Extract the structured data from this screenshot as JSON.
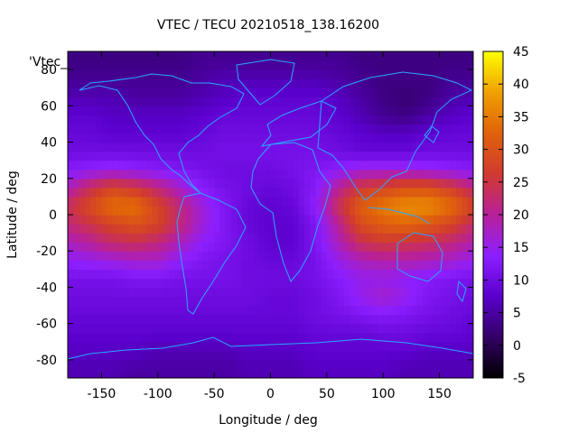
{
  "chart_data": {
    "type": "heatmap",
    "title": "VTEC / TECU 20210518_138.16200",
    "xlabel": "Longitude / deg",
    "ylabel": "Latitude / deg",
    "key_label": "'Vtec_",
    "xlim": [
      -180,
      180
    ],
    "ylim": [
      -90,
      90
    ],
    "x_ticks": [
      -150,
      -100,
      -50,
      0,
      50,
      100,
      150
    ],
    "y_ticks": [
      -80,
      -60,
      -40,
      -20,
      0,
      20,
      40,
      60,
      80
    ],
    "colorbar": {
      "min": -5,
      "max": 45,
      "ticks": [
        -5,
        0,
        5,
        10,
        15,
        20,
        25,
        30,
        35,
        40,
        45
      ]
    },
    "grid": false,
    "colors": {
      "coastline": "#2aa8ff"
    },
    "grid_latitudes": [
      -85,
      -75,
      -65,
      -55,
      -45,
      -35,
      -25,
      -15,
      -5,
      5,
      15,
      25,
      35,
      45,
      55,
      65,
      75,
      85
    ],
    "grid_longitudes": [
      -180,
      -160,
      -140,
      -120,
      -100,
      -80,
      -60,
      -40,
      -20,
      0,
      20,
      40,
      60,
      80,
      100,
      120,
      140,
      160,
      180
    ],
    "vtec_values": [
      [
        6,
        6,
        6,
        5,
        5,
        5,
        5,
        5,
        6,
        6,
        6,
        7,
        7,
        7,
        7,
        6,
        6,
        6,
        6
      ],
      [
        7,
        7,
        7,
        7,
        6,
        6,
        6,
        6,
        7,
        7,
        7,
        8,
        8,
        8,
        8,
        8,
        7,
        7,
        7
      ],
      [
        8,
        8,
        8,
        8,
        8,
        8,
        8,
        8,
        8,
        8,
        8,
        9,
        9,
        9,
        10,
        10,
        9,
        9,
        8
      ],
      [
        9,
        9,
        9,
        9,
        9,
        9,
        9,
        9,
        9,
        9,
        9,
        10,
        11,
        12,
        13,
        12,
        11,
        10,
        9
      ],
      [
        10,
        10,
        10,
        10,
        10,
        10,
        10,
        10,
        10,
        9,
        9,
        10,
        12,
        15,
        17,
        15,
        12,
        11,
        10
      ],
      [
        11,
        11,
        11,
        12,
        12,
        11,
        11,
        11,
        10,
        10,
        10,
        11,
        13,
        15,
        15,
        14,
        13,
        12,
        11
      ],
      [
        14,
        15,
        16,
        17,
        17,
        14,
        12,
        11,
        10,
        9,
        9,
        11,
        15,
        18,
        19,
        19,
        18,
        17,
        15
      ],
      [
        18,
        20,
        23,
        24,
        22,
        18,
        14,
        12,
        10,
        8,
        8,
        12,
        18,
        24,
        26,
        25,
        24,
        22,
        19
      ],
      [
        22,
        25,
        28,
        30,
        28,
        22,
        16,
        12,
        9,
        8,
        8,
        12,
        20,
        29,
        32,
        33,
        31,
        28,
        23
      ],
      [
        24,
        29,
        34,
        34,
        28,
        22,
        16,
        12,
        9,
        8,
        9,
        14,
        24,
        32,
        35,
        37,
        37,
        34,
        28
      ],
      [
        18,
        24,
        28,
        26,
        22,
        17,
        13,
        11,
        10,
        9,
        10,
        13,
        20,
        26,
        28,
        30,
        30,
        27,
        22
      ],
      [
        13,
        14,
        15,
        14,
        13,
        12,
        11,
        10,
        10,
        10,
        11,
        12,
        14,
        16,
        16,
        16,
        15,
        14,
        13
      ],
      [
        10,
        10,
        10,
        10,
        10,
        10,
        10,
        11,
        11,
        11,
        11,
        11,
        10,
        9,
        9,
        9,
        10,
        10,
        10
      ],
      [
        9,
        9,
        8,
        8,
        8,
        8,
        9,
        10,
        10,
        10,
        10,
        10,
        9,
        8,
        7,
        7,
        8,
        9,
        9
      ],
      [
        8,
        8,
        7,
        7,
        7,
        7,
        8,
        9,
        9,
        9,
        9,
        9,
        8,
        6,
        4,
        3,
        5,
        7,
        8
      ],
      [
        6,
        6,
        6,
        5,
        5,
        5,
        6,
        7,
        8,
        8,
        8,
        8,
        7,
        5,
        3,
        2,
        3,
        5,
        6
      ],
      [
        4,
        4,
        4,
        4,
        4,
        4,
        5,
        6,
        6,
        6,
        6,
        6,
        5,
        4,
        3,
        3,
        3,
        4,
        4
      ],
      [
        3,
        3,
        3,
        3,
        3,
        3,
        4,
        4,
        4,
        4,
        4,
        4,
        4,
        3,
        3,
        3,
        3,
        3,
        3
      ]
    ]
  }
}
